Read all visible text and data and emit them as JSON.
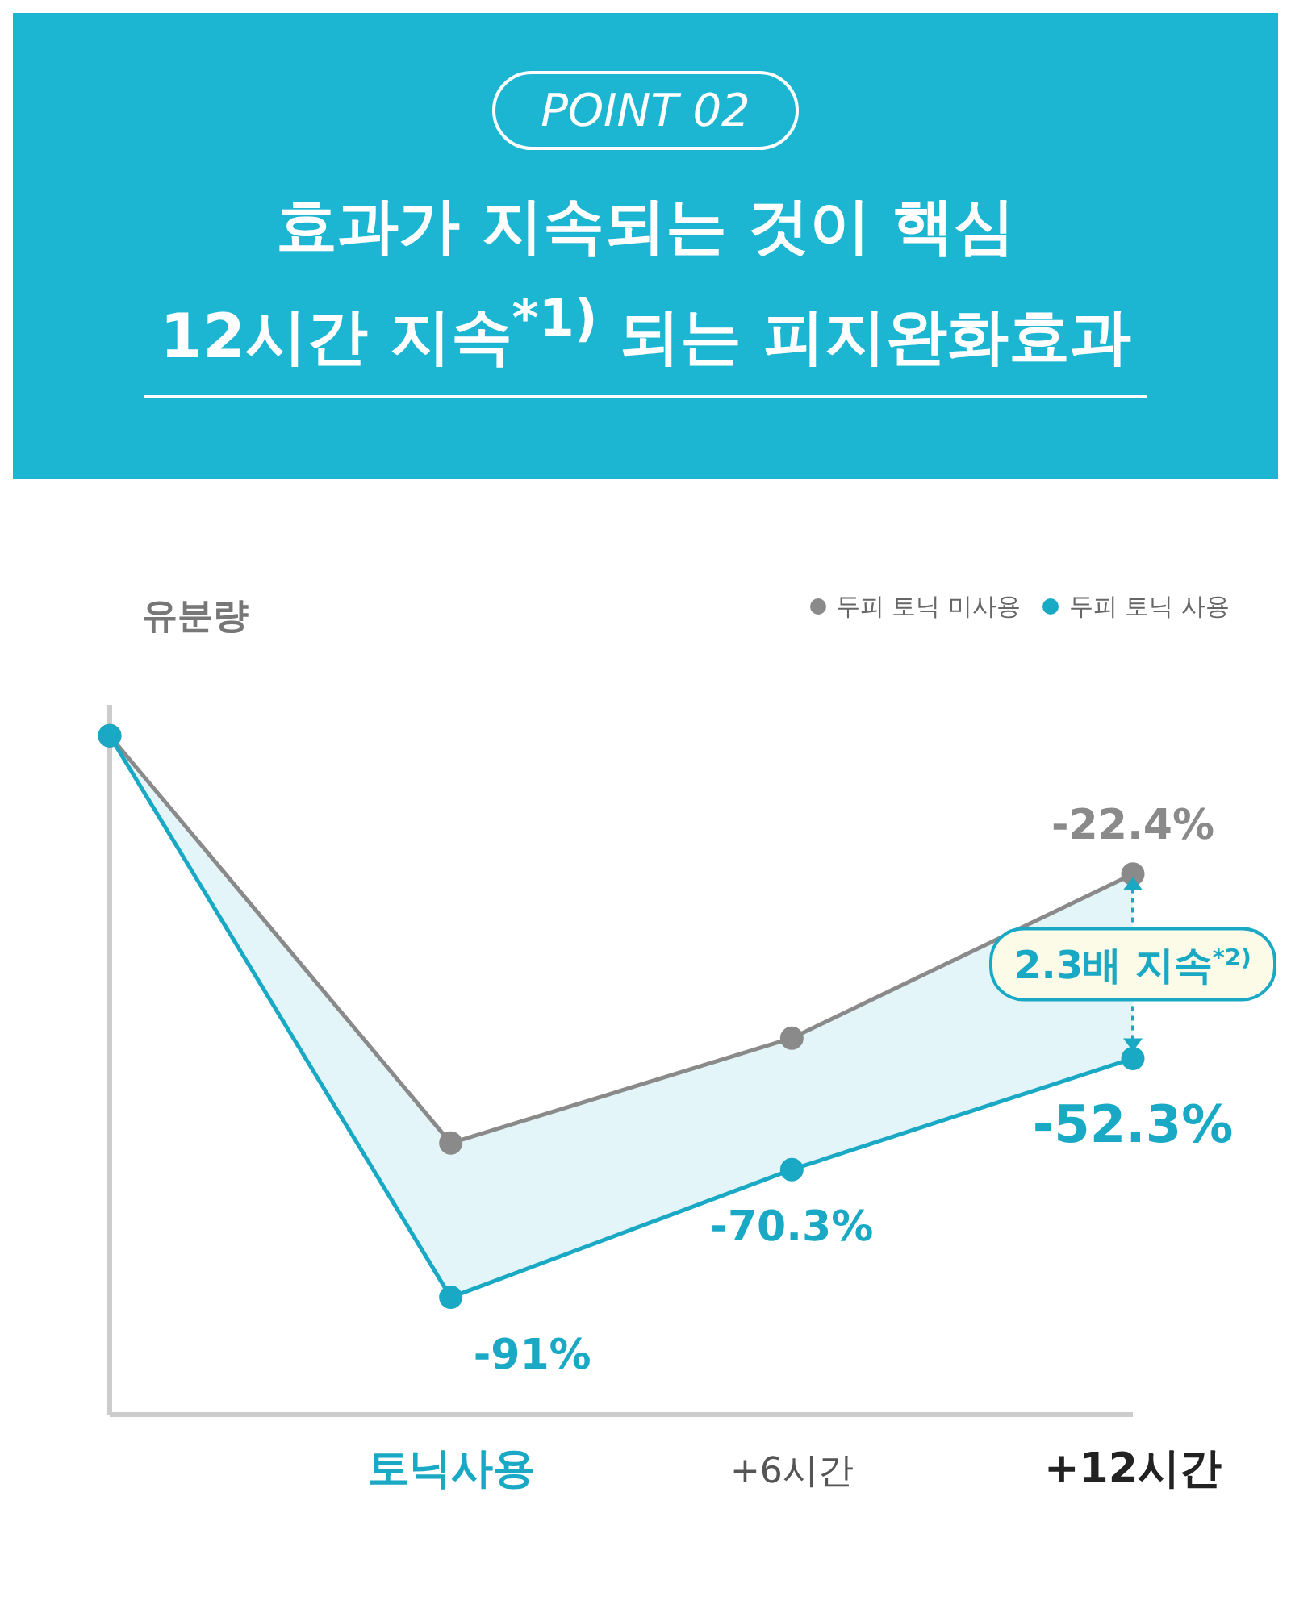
{
  "chart_data": {
    "type": "line",
    "title": "효과가 지속되는 것이 핵심",
    "subtitle": "12시간 지속$^{*1)}$ 되는 피지완화효과",
    "annotations": [
      "POINT 02",
      {
        "text": "2.3배 지속$^{*2)}$",
        "x": "+12시간",
        "y": -37
      }
    ],
    "ylabel": "유분량",
    "categories": [
      null,
      "토닉사용",
      "+6시간",
      "+12시간"
    ],
    "series": [
      {
        "name": "두피 토닉 미사용",
        "color": "#8a8a8a",
        "values": [
          0,
          -66,
          -49,
          -22.4
        ],
        "value_labels": [
          null,
          null,
          null,
          "-22.4%"
        ]
      },
      {
        "name": "두피 토닉 사용",
        "color": "#1aa9c4",
        "values": [
          0,
          -91,
          -70.3,
          -52.3
        ],
        "value_labels": [
          null,
          "-91%",
          "-70.3%",
          "-52.3%"
        ],
        "lower": [
          0,
          -91,
          -70.3,
          -52.3
        ],
        "upper": [
          0,
          -66,
          -49,
          -22.4
        ]
      }
    ],
    "ylim": [
      -110,
      5
    ],
    "tick_labels": "x",
    "legend": "top right",
    "marker": "circle",
    "line_style": "solid"
  }
}
